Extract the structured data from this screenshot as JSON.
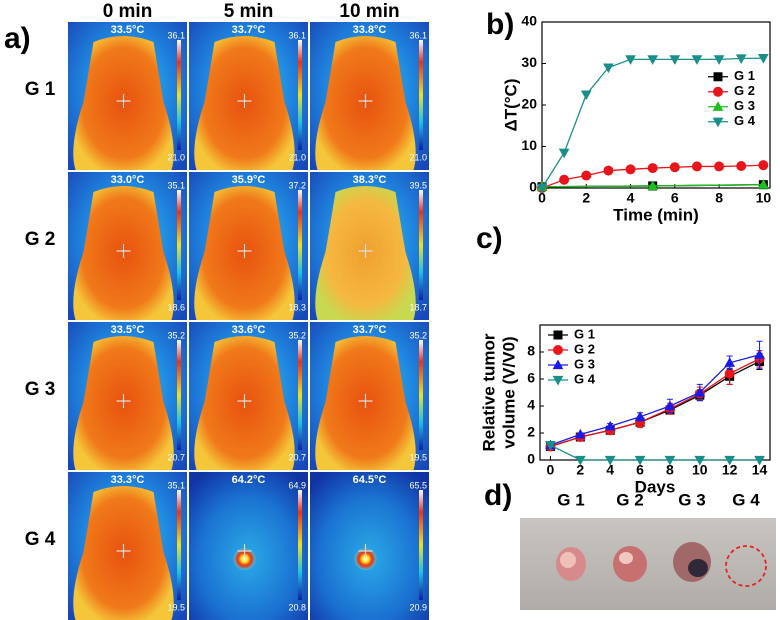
{
  "panel_labels": [
    "a)",
    "b)",
    "c)",
    "d)"
  ],
  "thermal": {
    "columns": [
      "0 min",
      "5 min",
      "10 min"
    ],
    "rows": [
      {
        "label": "G 1",
        "cells": [
          {
            "temp": "33.5°C",
            "max": "36.1",
            "min": "21.0"
          },
          {
            "temp": "33.7°C",
            "max": "36.1",
            "min": "21.0"
          },
          {
            "temp": "33.8°C",
            "max": "36.1",
            "min": "21.0"
          }
        ]
      },
      {
        "label": "G 2",
        "cells": [
          {
            "temp": "33.0°C",
            "max": "35.1",
            "min": "18.6"
          },
          {
            "temp": "35.9°C",
            "max": "37.2",
            "min": "18.3"
          },
          {
            "temp": "38.3°C",
            "max": "39.5",
            "min": "18.7"
          }
        ]
      },
      {
        "label": "G 3",
        "cells": [
          {
            "temp": "33.5°C",
            "max": "35.2",
            "min": "20.7"
          },
          {
            "temp": "33.6°C",
            "max": "35.2",
            "min": "20.7"
          },
          {
            "temp": "33.7°C",
            "max": "35.2",
            "min": "19.5"
          }
        ]
      },
      {
        "label": "G 4",
        "cells": [
          {
            "temp": "33.3°C",
            "max": "35.1",
            "min": "19.5"
          },
          {
            "temp": "64.2°C",
            "max": "64.9",
            "min": "20.8"
          },
          {
            "temp": "64.5°C",
            "max": "65.5",
            "min": "20.9"
          }
        ]
      }
    ]
  },
  "photo": {
    "labels": [
      "G 1",
      "G 2",
      "G 3",
      "G 4"
    ]
  },
  "chart_data": [
    {
      "type": "line",
      "ylabel": "ΔT(°C)",
      "xlabel": "Time (min)",
      "xlim": [
        0,
        10.3
      ],
      "xticks": [
        0,
        2,
        4,
        6,
        8,
        10
      ],
      "ylim": [
        0,
        40
      ],
      "yticks": [
        0,
        10,
        20,
        30,
        40
      ],
      "legend": "right",
      "series": [
        {
          "name": "G 1",
          "color": "#000000",
          "marker": "square",
          "x": [
            0,
            5,
            10
          ],
          "values": [
            0.3,
            0.5,
            0.8
          ]
        },
        {
          "name": "G 2",
          "color": "#e8151b",
          "marker": "circle",
          "x": [
            0,
            1,
            2,
            3,
            4,
            5,
            6,
            7,
            8,
            9,
            10
          ],
          "values": [
            0,
            2,
            3,
            4.2,
            4.5,
            4.8,
            5,
            5.2,
            5.2,
            5.3,
            5.5
          ]
        },
        {
          "name": "G 3",
          "color": "#1fbf1f",
          "marker": "triangle-up",
          "x": [
            0,
            5,
            10
          ],
          "values": [
            0.3,
            0.5,
            0.8
          ]
        },
        {
          "name": "G 4",
          "color": "#1a8f8a",
          "marker": "triangle-down",
          "x": [
            0,
            1,
            2,
            3,
            4,
            5,
            6,
            7,
            8,
            9,
            10
          ],
          "values": [
            0,
            8.5,
            22.5,
            29,
            31,
            31,
            31,
            31,
            31,
            31.2,
            31.3
          ]
        }
      ]
    },
    {
      "type": "line",
      "ylabel": [
        "Relative tumor",
        "volume (V/V0)"
      ],
      "xlabel": "Days",
      "xlim": [
        -0.7,
        14.7
      ],
      "xticks": [
        0,
        2,
        4,
        6,
        8,
        10,
        12,
        14
      ],
      "ylim": [
        0,
        10
      ],
      "yticks": [
        0,
        2,
        4,
        6,
        8
      ],
      "legend": "upper left",
      "series": [
        {
          "name": "G 1",
          "color": "#000000",
          "marker": "square",
          "x": [
            0,
            2,
            4,
            6,
            8,
            10,
            12,
            14
          ],
          "values": [
            1,
            1.7,
            2.2,
            2.8,
            3.7,
            4.8,
            6.2,
            7.3
          ],
          "errors": [
            0.1,
            0.1,
            0.2,
            0.3,
            0.3,
            0.4,
            0.6,
            0.6
          ]
        },
        {
          "name": "G 2",
          "color": "#e8151b",
          "marker": "circle",
          "x": [
            0,
            2,
            4,
            6,
            8,
            10,
            12,
            14
          ],
          "values": [
            1,
            1.7,
            2.2,
            2.8,
            3.8,
            4.9,
            6.4,
            7.5
          ],
          "errors": [
            0.1,
            0.1,
            0.2,
            0.4,
            0.4,
            0.5,
            0.8,
            0.6
          ]
        },
        {
          "name": "G 3",
          "color": "#1a1ae8",
          "marker": "triangle-up",
          "x": [
            0,
            2,
            4,
            6,
            8,
            10,
            12,
            14
          ],
          "values": [
            1.1,
            1.9,
            2.5,
            3.2,
            4.0,
            5.0,
            7.2,
            7.8
          ],
          "errors": [
            0.1,
            0.1,
            0.2,
            0.3,
            0.5,
            0.6,
            0.5,
            1.0
          ]
        },
        {
          "name": "G 4",
          "color": "#1a8f8a",
          "marker": "triangle-down",
          "x": [
            0,
            2,
            4,
            6,
            8,
            10,
            12,
            14
          ],
          "values": [
            1.1,
            0,
            0,
            0,
            0,
            0,
            0,
            0
          ]
        }
      ]
    }
  ]
}
